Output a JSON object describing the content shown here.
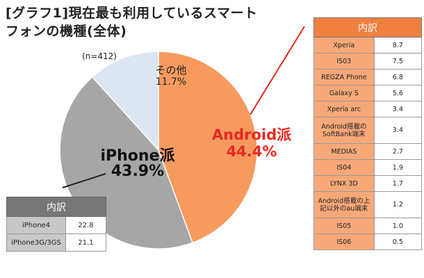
{
  "title": {
    "line1": "[グラフ1]現在最も利用しているスマート",
    "line2": "フォンの機種(全体)"
  },
  "sample_size": "(n=412)",
  "colors": {
    "android": "#f79a5e",
    "iphone": "#a6a6a6",
    "other": "#dce6f2",
    "android_text": "#e8281e",
    "android_table_header": "#f08040",
    "android_table_cell": "#f6a878",
    "iphone_table_header": "#777777",
    "iphone_table_cell": "#c8c8c8"
  },
  "chart_data": {
    "type": "pie",
    "title": "[グラフ1]現在最も利用しているスマートフォンの機種(全体)",
    "slices": [
      {
        "label": "Android派",
        "value": 44.4,
        "display": "44.4%",
        "color": "#f79a5e"
      },
      {
        "label": "iPhone派",
        "value": 43.9,
        "display": "43.9%",
        "color": "#a6a6a6"
      },
      {
        "label": "その他",
        "value": 11.7,
        "display": "11.7%",
        "color": "#dce6f2"
      }
    ],
    "breakdown_tables": [
      {
        "header": "内訳",
        "for": "Android派",
        "rows": [
          {
            "name": "Xperia",
            "value": "8.7"
          },
          {
            "name": "IS03",
            "value": "7.5"
          },
          {
            "name": "REGZA Phone",
            "value": "6.8"
          },
          {
            "name": "Galaxy S",
            "value": "5.6"
          },
          {
            "name": "Xperia arc",
            "value": "3.4"
          },
          {
            "name": "Android搭載のSoftBank端末",
            "value": "3.4"
          },
          {
            "name": "MEDIAS",
            "value": "2.7"
          },
          {
            "name": "IS04",
            "value": "1.9"
          },
          {
            "name": "LYNX 3D",
            "value": "1.7"
          },
          {
            "name": "Android搭載の上記以外のau端末",
            "value": "1.2"
          },
          {
            "name": "IS05",
            "value": "1.0"
          },
          {
            "name": "IS06",
            "value": "0.5"
          }
        ]
      },
      {
        "header": "内訳",
        "for": "iPhone派",
        "rows": [
          {
            "name": "iPhone4",
            "value": "22.8"
          },
          {
            "name": "iPhone3G/3GS",
            "value": "21.1"
          }
        ]
      }
    ]
  }
}
